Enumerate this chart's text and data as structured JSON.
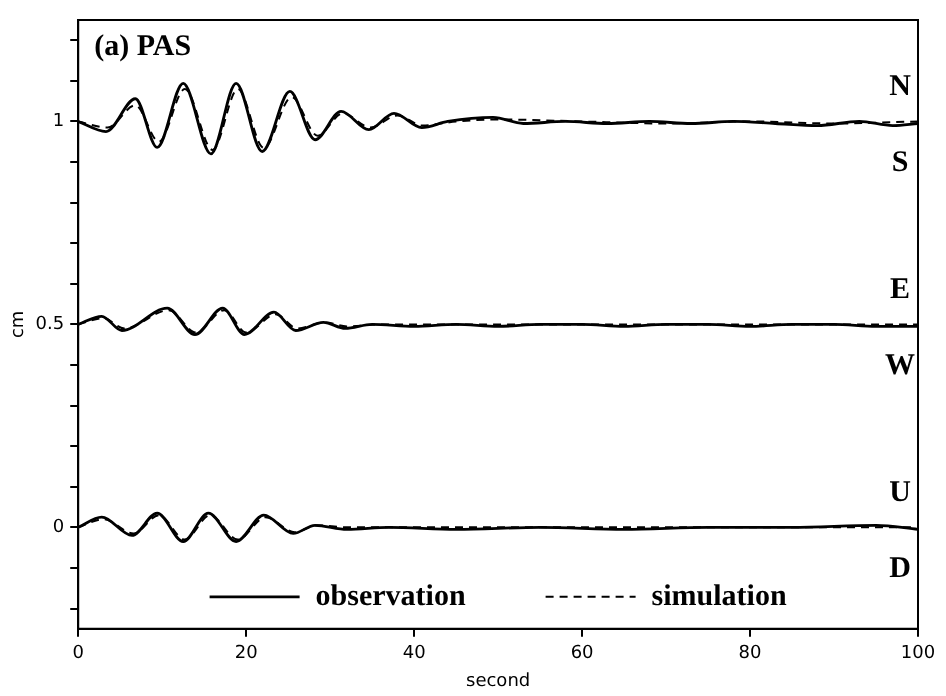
{
  "chart_data": {
    "type": "line",
    "title": "(a) PAS",
    "xlabel": "second",
    "ylabel": "cm",
    "xlim": [
      0,
      100
    ],
    "ylim": [
      -0.25,
      1.25
    ],
    "xticks": [
      0,
      20,
      40,
      60,
      80,
      100
    ],
    "yticks": [
      {
        "value": -0.2,
        "label": null
      },
      {
        "value": -0.1,
        "label": null
      },
      0,
      {
        "value": 0.1,
        "label": null
      },
      {
        "value": 0.2,
        "label": null
      },
      {
        "value": 0.3,
        "label": null
      },
      {
        "value": 0.4,
        "label": null
      },
      0.5,
      {
        "value": 0.6,
        "label": null
      },
      {
        "value": 0.7,
        "label": null
      },
      {
        "value": 0.8,
        "label": null
      },
      {
        "value": 0.9,
        "label": null
      },
      1,
      {
        "value": 1.1,
        "label": null
      },
      {
        "value": 1.2,
        "label": null
      }
    ],
    "grid": false,
    "legend": "bottom",
    "series": [
      {
        "name": "observation",
        "color": "#000000",
        "line_style": "solid",
        "x": [
          0,
          3.3,
          6.8,
          9.4,
          12.5,
          15.8,
          18.8,
          21.9,
          25.2,
          28.2,
          31.3,
          34.6,
          37.6,
          40.9,
          44,
          49.4,
          53,
          58,
          63,
          68,
          73,
          78,
          83,
          88,
          93,
          97,
          100
        ],
        "values": [
          1.0,
          0.975,
          1.056,
          0.936,
          1.094,
          0.92,
          1.094,
          0.926,
          1.074,
          0.955,
          1.025,
          0.98,
          1.02,
          0.985,
          1.0,
          1.01,
          0.995,
          1.0,
          0.995,
          1.0,
          0.995,
          1.0,
          0.995,
          0.99,
          1.0,
          0.99,
          0.995
        ]
      },
      {
        "color": "#000000",
        "line_style": "solid",
        "x": [
          0,
          2.8,
          5.2,
          10.6,
          13.9,
          17.2,
          19.8,
          23.3,
          25.9,
          29.2,
          31.8,
          35,
          40,
          45,
          50,
          55,
          60,
          65,
          70,
          75,
          80,
          85,
          90,
          95,
          100
        ],
        "values": [
          0.5,
          0.52,
          0.485,
          0.54,
          0.475,
          0.54,
          0.475,
          0.53,
          0.485,
          0.505,
          0.49,
          0.5,
          0.495,
          0.5,
          0.495,
          0.5,
          0.5,
          0.495,
          0.5,
          0.5,
          0.495,
          0.5,
          0.5,
          0.495,
          0.495
        ]
      },
      {
        "color": "#000000",
        "line_style": "solid",
        "x": [
          0,
          2.8,
          6.4,
          9.4,
          12.5,
          15.5,
          18.8,
          22.1,
          25.6,
          28.2,
          32,
          37,
          45,
          55,
          65,
          75,
          85,
          95,
          100
        ],
        "values": [
          0.0,
          0.025,
          -0.02,
          0.035,
          -0.035,
          0.035,
          -0.035,
          0.03,
          -0.015,
          0.005,
          -0.005,
          0.0,
          -0.005,
          0.0,
          -0.005,
          0.0,
          0.0,
          0.005,
          -0.005
        ]
      },
      {
        "name": "simulation",
        "color": "#000000",
        "line_style": "dashed",
        "x": [
          0,
          3.5,
          6.8,
          9.6,
          12.7,
          16,
          19,
          22.1,
          25.4,
          28.5,
          31.5,
          34.8,
          38,
          41,
          45,
          50,
          60,
          70,
          80,
          90,
          100
        ],
        "values": [
          1.0,
          0.985,
          1.04,
          0.95,
          1.08,
          0.93,
          1.08,
          0.935,
          1.06,
          0.965,
          1.02,
          0.985,
          1.015,
          0.99,
          1.0,
          1.005,
          1.0,
          0.995,
          1.0,
          0.995,
          1.0
        ]
      },
      {
        "color": "#000000",
        "line_style": "dashed",
        "x": [
          0,
          3,
          5.5,
          10.8,
          14,
          17.4,
          20,
          23.5,
          26.1,
          29.4,
          32,
          36,
          45,
          60,
          80,
          100
        ],
        "values": [
          0.5,
          0.515,
          0.49,
          0.535,
          0.48,
          0.535,
          0.48,
          0.525,
          0.49,
          0.505,
          0.495,
          0.5,
          0.5,
          0.5,
          0.5,
          0.5
        ]
      },
      {
        "color": "#000000",
        "line_style": "dashed",
        "x": [
          0,
          3,
          6.6,
          9.6,
          12.7,
          15.7,
          19,
          22.3,
          25.8,
          28.4,
          32,
          40,
          60,
          80,
          100
        ],
        "values": [
          0.0,
          0.02,
          -0.015,
          0.03,
          -0.03,
          0.03,
          -0.03,
          0.025,
          -0.012,
          0.005,
          0.0,
          0.0,
          0.0,
          0.0,
          0.0
        ]
      }
    ],
    "annotations": [
      "N",
      "S",
      "E",
      "W",
      "U",
      "D"
    ]
  }
}
